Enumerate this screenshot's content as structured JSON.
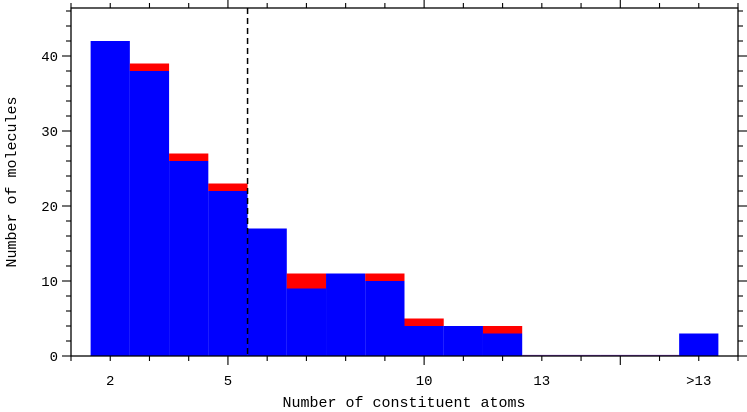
{
  "chart_data": {
    "type": "bar",
    "stacked": true,
    "xlabel": "Number of constituent atoms",
    "ylabel": "Number of molecules",
    "x": [
      2,
      3,
      4,
      5,
      6,
      7,
      8,
      9,
      10,
      11,
      12,
      13,
      14,
      15,
      16,
      17
    ],
    "tick_labels": [
      {
        "x": 2,
        "label": "2"
      },
      {
        "x": 5,
        "label": "5"
      },
      {
        "x": 10,
        "label": "10"
      },
      {
        "x": 13,
        "label": "13"
      },
      {
        "x": 17,
        "label": ">13"
      }
    ],
    "series": [
      {
        "color": "#0000ff",
        "values": [
          42,
          38,
          26,
          22,
          17,
          9,
          11,
          10,
          4,
          4,
          3,
          0,
          0,
          0,
          0,
          3
        ]
      },
      {
        "color": "#ff0000",
        "values": [
          0,
          1,
          1,
          1,
          0,
          2,
          0,
          1,
          1,
          0,
          1,
          0,
          0,
          0,
          0,
          0
        ]
      }
    ],
    "y_ticks": [
      0,
      10,
      20,
      30,
      40
    ],
    "xlim": [
      1,
      18
    ],
    "ylim": [
      0,
      46.4
    ],
    "vline": {
      "x": 5.5,
      "style": "dashed",
      "color": "#000000"
    },
    "grid": false,
    "legend": "none"
  }
}
